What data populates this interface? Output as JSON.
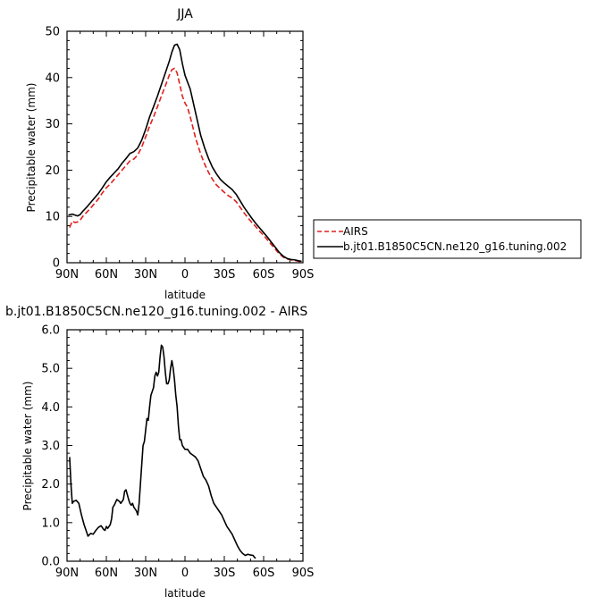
{
  "chart_data": [
    {
      "type": "line",
      "title": "JJA",
      "xlabel": "latitude",
      "ylabel": "Precipitable water (mm)",
      "xlim": [
        90,
        -90
      ],
      "ylim": [
        0,
        50
      ],
      "x_ticks": [
        90,
        60,
        30,
        0,
        -30,
        -60,
        -90
      ],
      "x_tick_labels": [
        "90N",
        "60N",
        "30N",
        "0",
        "30S",
        "60S",
        "90S"
      ],
      "y_ticks": [
        0,
        10,
        20,
        30,
        40,
        50
      ],
      "y_tick_labels": [
        "0",
        "10",
        "20",
        "30",
        "40",
        "50"
      ],
      "legend_position": "right",
      "series": [
        {
          "name": "AIRS",
          "color": "#e0201b",
          "dash": "dashed",
          "points": [
            [
              88,
              7.6
            ],
            [
              86,
              9.0
            ],
            [
              84,
              8.7
            ],
            [
              82,
              8.8
            ],
            [
              80,
              9.2
            ],
            [
              78,
              10.0
            ],
            [
              75,
              10.9
            ],
            [
              72,
              11.8
            ],
            [
              69,
              12.8
            ],
            [
              66,
              13.8
            ],
            [
              63,
              15.1
            ],
            [
              60,
              16.2
            ],
            [
              57,
              17.0
            ],
            [
              54,
              18.0
            ],
            [
              51,
              19.0
            ],
            [
              48,
              20.0
            ],
            [
              45,
              21.0
            ],
            [
              42,
              22.0
            ],
            [
              39,
              22.4
            ],
            [
              36,
              23.3
            ],
            [
              33,
              25.0
            ],
            [
              30,
              27.2
            ],
            [
              27,
              29.5
            ],
            [
              24,
              31.5
            ],
            [
              21,
              33.7
            ],
            [
              18,
              36.0
            ],
            [
              15,
              38.2
            ],
            [
              12,
              40.5
            ],
            [
              10,
              41.7
            ],
            [
              8,
              42.0
            ],
            [
              6,
              41.0
            ],
            [
              4,
              38.5
            ],
            [
              2,
              36.0
            ],
            [
              0,
              34.5
            ],
            [
              -2,
              33.5
            ],
            [
              -4,
              31.5
            ],
            [
              -6,
              29.3
            ],
            [
              -8,
              27.0
            ],
            [
              -10,
              25.2
            ],
            [
              -12,
              23.5
            ],
            [
              -15,
              21.3
            ],
            [
              -18,
              19.5
            ],
            [
              -21,
              18.0
            ],
            [
              -24,
              16.8
            ],
            [
              -27,
              16.0
            ],
            [
              -30,
              15.2
            ],
            [
              -33,
              14.5
            ],
            [
              -36,
              14.0
            ],
            [
              -39,
              13.2
            ],
            [
              -42,
              12.0
            ],
            [
              -45,
              10.8
            ],
            [
              -48,
              9.7
            ],
            [
              -51,
              8.7
            ],
            [
              -54,
              7.8
            ],
            [
              -57,
              6.8
            ],
            [
              -60,
              5.9
            ],
            [
              -63,
              4.9
            ],
            [
              -66,
              3.9
            ],
            [
              -69,
              2.9
            ],
            [
              -72,
              1.9
            ],
            [
              -75,
              1.2
            ],
            [
              -78,
              0.8
            ],
            [
              -81,
              0.6
            ],
            [
              -84,
              0.5
            ],
            [
              -87,
              0.3
            ],
            [
              -89,
              0.2
            ]
          ]
        },
        {
          "name": "b.jt01.B1850C5CN.ne120_g16.tuning.002",
          "color": "#000000",
          "dash": "solid",
          "points": [
            [
              89,
              10.3
            ],
            [
              86,
              10.5
            ],
            [
              84,
              10.3
            ],
            [
              82,
              10.1
            ],
            [
              80,
              10.4
            ],
            [
              78,
              11.1
            ],
            [
              75,
              12.0
            ],
            [
              72,
              13.0
            ],
            [
              69,
              14.0
            ],
            [
              66,
              15.0
            ],
            [
              63,
              16.2
            ],
            [
              60,
              17.5
            ],
            [
              57,
              18.5
            ],
            [
              54,
              19.4
            ],
            [
              51,
              20.3
            ],
            [
              48,
              21.5
            ],
            [
              45,
              22.5
            ],
            [
              42,
              23.6
            ],
            [
              39,
              24.0
            ],
            [
              36,
              24.8
            ],
            [
              33,
              26.5
            ],
            [
              30,
              28.8
            ],
            [
              27,
              31.5
            ],
            [
              24,
              33.7
            ],
            [
              21,
              36.0
            ],
            [
              18,
              38.5
            ],
            [
              15,
              41.0
            ],
            [
              12,
              43.5
            ],
            [
              10,
              45.5
            ],
            [
              8,
              47.0
            ],
            [
              6,
              47.2
            ],
            [
              4,
              46.0
            ],
            [
              2,
              43.0
            ],
            [
              0,
              40.5
            ],
            [
              -2,
              39.0
            ],
            [
              -4,
              37.5
            ],
            [
              -6,
              35.0
            ],
            [
              -8,
              32.5
            ],
            [
              -10,
              30.0
            ],
            [
              -12,
              27.5
            ],
            [
              -15,
              24.8
            ],
            [
              -18,
              22.5
            ],
            [
              -21,
              20.6
            ],
            [
              -24,
              19.2
            ],
            [
              -27,
              18.0
            ],
            [
              -30,
              17.2
            ],
            [
              -33,
              16.5
            ],
            [
              -36,
              15.8
            ],
            [
              -39,
              14.8
            ],
            [
              -42,
              13.4
            ],
            [
              -45,
              12.0
            ],
            [
              -48,
              10.8
            ],
            [
              -51,
              9.6
            ],
            [
              -54,
              8.5
            ],
            [
              -57,
              7.5
            ],
            [
              -60,
              6.5
            ],
            [
              -63,
              5.5
            ],
            [
              -66,
              4.4
            ],
            [
              -69,
              3.3
            ],
            [
              -72,
              2.2
            ],
            [
              -75,
              1.4
            ],
            [
              -78,
              0.9
            ],
            [
              -81,
              0.7
            ],
            [
              -84,
              0.6
            ],
            [
              -87,
              0.4
            ],
            [
              -89,
              0.3
            ]
          ]
        }
      ]
    },
    {
      "type": "line",
      "title": "b.jt01.B1850C5CN.ne120_g16.tuning.002 - AIRS",
      "xlabel": "latitude",
      "ylabel": "Precipitable water (mm)",
      "xlim": [
        90,
        -90
      ],
      "ylim": [
        0,
        6
      ],
      "x_ticks": [
        90,
        60,
        30,
        0,
        -30,
        -60,
        -90
      ],
      "x_tick_labels": [
        "90N",
        "60N",
        "30N",
        "0",
        "30S",
        "60S",
        "90S"
      ],
      "y_ticks": [
        0,
        1,
        2,
        3,
        4,
        5,
        6
      ],
      "y_tick_labels": [
        "0.0",
        "1.0",
        "2.0",
        "3.0",
        "4.0",
        "5.0",
        "6.0"
      ],
      "series": [
        {
          "color": "#000000",
          "dash": "solid",
          "points": [
            [
              88,
              2.7
            ],
            [
              87,
              2.0
            ],
            [
              86,
              1.5
            ],
            [
              85,
              1.55
            ],
            [
              83,
              1.58
            ],
            [
              81,
              1.5
            ],
            [
              79,
              1.2
            ],
            [
              77,
              0.95
            ],
            [
              75,
              0.75
            ],
            [
              74,
              0.65
            ],
            [
              72,
              0.72
            ],
            [
              70,
              0.7
            ],
            [
              68,
              0.8
            ],
            [
              66,
              0.88
            ],
            [
              64,
              0.92
            ],
            [
              62,
              0.82
            ],
            [
              61,
              0.8
            ],
            [
              60,
              0.9
            ],
            [
              59,
              0.85
            ],
            [
              57,
              0.95
            ],
            [
              56,
              1.1
            ],
            [
              55,
              1.4
            ],
            [
              54,
              1.45
            ],
            [
              52,
              1.6
            ],
            [
              50,
              1.55
            ],
            [
              49,
              1.5
            ],
            [
              47,
              1.6
            ],
            [
              46,
              1.82
            ],
            [
              45,
              1.85
            ],
            [
              43,
              1.6
            ],
            [
              42,
              1.5
            ],
            [
              41,
              1.45
            ],
            [
              40,
              1.5
            ],
            [
              39,
              1.4
            ],
            [
              38,
              1.35
            ],
            [
              37,
              1.3
            ],
            [
              36,
              1.2
            ],
            [
              35,
              1.5
            ],
            [
              34,
              2.0
            ],
            [
              33,
              2.5
            ],
            [
              32,
              3.0
            ],
            [
              31,
              3.1
            ],
            [
              30,
              3.4
            ],
            [
              29,
              3.7
            ],
            [
              28,
              3.65
            ],
            [
              27,
              4.0
            ],
            [
              26,
              4.3
            ],
            [
              25,
              4.4
            ],
            [
              24,
              4.5
            ],
            [
              23,
              4.8
            ],
            [
              22,
              4.9
            ],
            [
              21,
              4.8
            ],
            [
              20,
              4.9
            ],
            [
              19,
              5.3
            ],
            [
              18,
              5.6
            ],
            [
              17,
              5.55
            ],
            [
              16,
              5.3
            ],
            [
              15,
              4.9
            ],
            [
              14,
              4.6
            ],
            [
              13,
              4.6
            ],
            [
              12,
              4.7
            ],
            [
              11,
              5.0
            ],
            [
              10,
              5.2
            ],
            [
              9,
              5.0
            ],
            [
              8,
              4.7
            ],
            [
              7,
              4.3
            ],
            [
              6,
              4.0
            ],
            [
              5,
              3.5
            ],
            [
              4,
              3.15
            ],
            [
              3,
              3.15
            ],
            [
              2,
              3.0
            ],
            [
              0,
              2.9
            ],
            [
              -2,
              2.9
            ],
            [
              -4,
              2.8
            ],
            [
              -6,
              2.75
            ],
            [
              -8,
              2.7
            ],
            [
              -10,
              2.6
            ],
            [
              -12,
              2.4
            ],
            [
              -14,
              2.2
            ],
            [
              -16,
              2.1
            ],
            [
              -18,
              1.95
            ],
            [
              -20,
              1.7
            ],
            [
              -22,
              1.5
            ],
            [
              -24,
              1.4
            ],
            [
              -26,
              1.3
            ],
            [
              -28,
              1.2
            ],
            [
              -30,
              1.05
            ],
            [
              -32,
              0.9
            ],
            [
              -34,
              0.8
            ],
            [
              -36,
              0.7
            ],
            [
              -38,
              0.55
            ],
            [
              -40,
              0.4
            ],
            [
              -42,
              0.28
            ],
            [
              -44,
              0.2
            ],
            [
              -46,
              0.15
            ],
            [
              -48,
              0.18
            ],
            [
              -50,
              0.16
            ],
            [
              -52,
              0.15
            ],
            [
              -53,
              0.1
            ],
            [
              -54,
              0.08
            ]
          ]
        }
      ]
    }
  ]
}
